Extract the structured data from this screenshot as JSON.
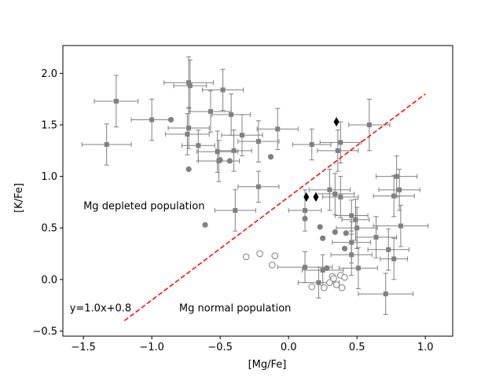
{
  "chart_data": {
    "type": "scatter",
    "title": "",
    "xlabel": "[Mg/Fe]",
    "ylabel": "[K/Fe]",
    "xlim": [
      -1.65,
      1.2
    ],
    "ylim": [
      -0.55,
      2.27
    ],
    "xticks": [
      -1.5,
      -1.0,
      -0.5,
      0.0,
      0.5,
      1.0
    ],
    "xtick_labels": [
      "−1.5",
      "−1.0",
      "−0.5",
      "0.0",
      "0.5",
      "1.0"
    ],
    "yticks": [
      -0.5,
      0.0,
      0.5,
      1.0,
      1.5,
      2.0
    ],
    "ytick_labels": [
      "−0.5",
      "0.0",
      "0.5",
      "1.0",
      "1.5",
      "2.0"
    ],
    "grid": false,
    "colors": {
      "gray": "#808080",
      "black": "#000000",
      "line": "#ff0000"
    },
    "annotations": [
      {
        "text": "Mg depleted population",
        "x": -1.5,
        "y": 0.72
      },
      {
        "text": "Mg normal population",
        "x": -0.8,
        "y": -0.27
      },
      {
        "text": "y=1.0x+0.8",
        "x": -1.6,
        "y": -0.27
      }
    ],
    "fit_line": {
      "slope": 1.0,
      "intercept": 0.8,
      "x_range": [
        -1.2,
        1.0
      ],
      "style": "dashed",
      "color": "#ff0000"
    },
    "series": [
      {
        "marker": "square-gray",
        "points": [
          {
            "x": -1.26,
            "y": 1.73,
            "xerr": 0.16,
            "yerr": 0.25
          },
          {
            "x": -1.33,
            "y": 1.31,
            "xerr": 0.18,
            "yerr": 0.2
          },
          {
            "x": -1.0,
            "y": 1.55,
            "xerr": 0.15,
            "yerr": 0.2
          },
          {
            "x": -0.73,
            "y": 1.91,
            "xerr": 0.18,
            "yerr": 0.25
          },
          {
            "x": -0.72,
            "y": 1.88,
            "xerr": 0.12,
            "yerr": 0.25
          },
          {
            "x": -0.48,
            "y": 1.84,
            "xerr": 0.15,
            "yerr": 0.2
          },
          {
            "x": -0.57,
            "y": 1.63,
            "xerr": 0.15,
            "yerr": 0.2
          },
          {
            "x": -0.42,
            "y": 1.6,
            "xerr": 0.14,
            "yerr": 0.2
          },
          {
            "x": -0.74,
            "y": 1.41,
            "xerr": 0.16,
            "yerr": 0.2
          },
          {
            "x": -0.73,
            "y": 1.47,
            "xerr": 0.15,
            "yerr": 0.2
          },
          {
            "x": -0.66,
            "y": 1.3,
            "xerr": 0.12,
            "yerr": 0.15
          },
          {
            "x": -0.34,
            "y": 1.4,
            "xerr": 0.15,
            "yerr": 0.2
          },
          {
            "x": -0.08,
            "y": 1.46,
            "xerr": 0.15,
            "yerr": 0.2
          },
          {
            "x": -0.52,
            "y": 1.24,
            "xerr": 0.15,
            "yerr": 0.2
          },
          {
            "x": -0.4,
            "y": 1.25,
            "xerr": 0.13,
            "yerr": 0.2
          },
          {
            "x": -0.22,
            "y": 1.34,
            "xerr": 0.15,
            "yerr": 0.2
          },
          {
            "x": -0.51,
            "y": 1.15,
            "xerr": 0.15,
            "yerr": 0.2
          },
          {
            "x": 0.17,
            "y": 1.31,
            "xerr": 0.14,
            "yerr": 0.15
          },
          {
            "x": 0.36,
            "y": 1.25,
            "xerr": 0.15,
            "yerr": 0.2
          },
          {
            "x": 0.38,
            "y": 1.33,
            "xerr": 0.15,
            "yerr": 0.2
          },
          {
            "x": 0.59,
            "y": 1.5,
            "xerr": 0.15,
            "yerr": 0.25
          },
          {
            "x": -0.22,
            "y": 0.9,
            "xerr": 0.15,
            "yerr": 0.15
          },
          {
            "x": -0.39,
            "y": 0.67,
            "xerr": 0.15,
            "yerr": 0.2
          },
          {
            "x": 0.12,
            "y": 0.67,
            "xerr": 0.12,
            "yerr": 0.2
          },
          {
            "x": 0.3,
            "y": 0.87,
            "xerr": 0.15,
            "yerr": 0.2
          },
          {
            "x": 0.34,
            "y": 0.83,
            "xerr": 0.14,
            "yerr": 0.2
          },
          {
            "x": 0.38,
            "y": 0.8,
            "xerr": 0.13,
            "yerr": 0.2
          },
          {
            "x": 0.46,
            "y": 0.62,
            "xerr": 0.12,
            "yerr": 0.15
          },
          {
            "x": 0.49,
            "y": 0.58,
            "xerr": 0.1,
            "yerr": 0.2
          },
          {
            "x": 0.5,
            "y": 0.5,
            "xerr": 0.15,
            "yerr": 0.2
          },
          {
            "x": 0.46,
            "y": 0.36,
            "xerr": 0.14,
            "yerr": 0.2
          },
          {
            "x": 0.64,
            "y": 0.41,
            "xerr": 0.15,
            "yerr": 0.2
          },
          {
            "x": 0.79,
            "y": 1.0,
            "xerr": 0.15,
            "yerr": 0.2
          },
          {
            "x": 0.81,
            "y": 0.87,
            "xerr": 0.15,
            "yerr": 0.2
          },
          {
            "x": 0.77,
            "y": 0.81,
            "xerr": 0.15,
            "yerr": 0.2
          },
          {
            "x": 0.82,
            "y": 0.52,
            "xerr": 0.2,
            "yerr": 0.2
          },
          {
            "x": 0.73,
            "y": 0.29,
            "xerr": 0.15,
            "yerr": 0.2
          },
          {
            "x": 0.77,
            "y": 0.2,
            "xerr": 0.1,
            "yerr": 0.2
          },
          {
            "x": 0.46,
            "y": 0.24,
            "xerr": 0.15,
            "yerr": 0.2
          },
          {
            "x": 0.51,
            "y": 0.11,
            "xerr": 0.14,
            "yerr": 0.2
          },
          {
            "x": 0.12,
            "y": 0.12,
            "xerr": 0.2,
            "yerr": 0.15
          },
          {
            "x": 0.25,
            "y": 0.09,
            "xerr": 0.15,
            "yerr": 0.15
          },
          {
            "x": 0.22,
            "y": -0.03,
            "xerr": 0.15,
            "yerr": 0.15
          },
          {
            "x": 0.71,
            "y": -0.14,
            "xerr": 0.2,
            "yerr": 0.2
          }
        ]
      },
      {
        "marker": "circle-gray",
        "points": [
          {
            "x": -0.86,
            "y": 1.55
          },
          {
            "x": -0.13,
            "y": 1.19
          },
          {
            "x": -0.5,
            "y": 1.16
          },
          {
            "x": -0.43,
            "y": 1.15
          },
          {
            "x": -0.73,
            "y": 1.07
          },
          {
            "x": -0.61,
            "y": 0.53
          },
          {
            "x": 0.12,
            "y": 0.59
          },
          {
            "x": 0.23,
            "y": 0.51
          },
          {
            "x": 0.34,
            "y": 0.46
          },
          {
            "x": 0.42,
            "y": 0.45
          },
          {
            "x": 0.25,
            "y": 0.4
          },
          {
            "x": 0.41,
            "y": 0.3
          },
          {
            "x": 0.28,
            "y": 0.11
          }
        ]
      },
      {
        "marker": "circle-open",
        "points": [
          {
            "x": -0.31,
            "y": 0.22
          },
          {
            "x": -0.21,
            "y": 0.25
          },
          {
            "x": -0.12,
            "y": 0.14
          },
          {
            "x": -0.1,
            "y": 0.23
          },
          {
            "x": 0.17,
            "y": -0.07
          },
          {
            "x": 0.26,
            "y": -0.08
          },
          {
            "x": 0.3,
            "y": -0.03
          },
          {
            "x": 0.32,
            "y": 0.03
          },
          {
            "x": 0.33,
            "y": 0.01
          },
          {
            "x": 0.35,
            "y": -0.05
          },
          {
            "x": 0.38,
            "y": 0.04
          },
          {
            "x": 0.39,
            "y": -0.08
          },
          {
            "x": 0.41,
            "y": 0.02
          }
        ]
      },
      {
        "marker": "diamond-black",
        "points": [
          {
            "x": 0.35,
            "y": 1.53
          },
          {
            "x": 0.13,
            "y": 0.8
          },
          {
            "x": 0.2,
            "y": 0.8
          }
        ]
      }
    ]
  }
}
